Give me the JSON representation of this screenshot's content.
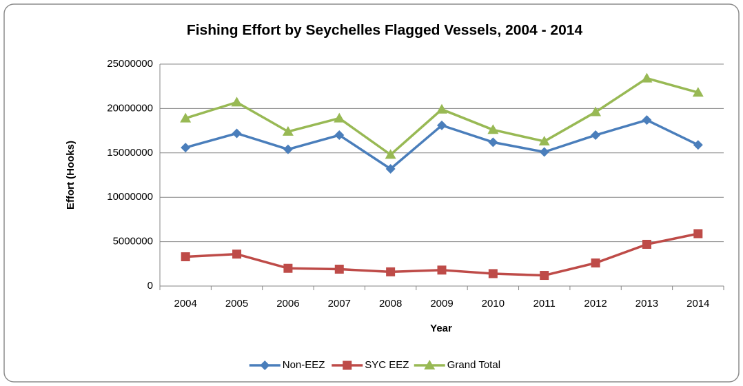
{
  "chart_data": {
    "type": "line",
    "title": "Fishing Effort by Seychelles Flagged Vessels, 2004 - 2014",
    "xlabel": "Year",
    "ylabel": "Effort (Hooks)",
    "categories": [
      "2004",
      "2005",
      "2006",
      "2007",
      "2008",
      "2009",
      "2010",
      "2011",
      "2012",
      "2013",
      "2014"
    ],
    "series": [
      {
        "name": "Non-EEZ",
        "color": "#4a7ebb",
        "marker": "diamond",
        "values": [
          15600000,
          17200000,
          15400000,
          17000000,
          13200000,
          18100000,
          16200000,
          15100000,
          17000000,
          18700000,
          15900000
        ]
      },
      {
        "name": "SYC EEZ",
        "color": "#be4b48",
        "marker": "square",
        "values": [
          3300000,
          3600000,
          2000000,
          1900000,
          1600000,
          1800000,
          1400000,
          1200000,
          2600000,
          4700000,
          5900000
        ]
      },
      {
        "name": "Grand Total",
        "color": "#98b954",
        "marker": "triangle",
        "values": [
          18900000,
          20700000,
          17400000,
          18900000,
          14800000,
          19900000,
          17600000,
          16300000,
          19600000,
          23400000,
          21800000
        ]
      }
    ],
    "ylim": [
      0,
      25000000
    ],
    "yticks": [
      0,
      5000000,
      10000000,
      15000000,
      20000000,
      25000000
    ],
    "grid": true,
    "legend": "bottom"
  }
}
